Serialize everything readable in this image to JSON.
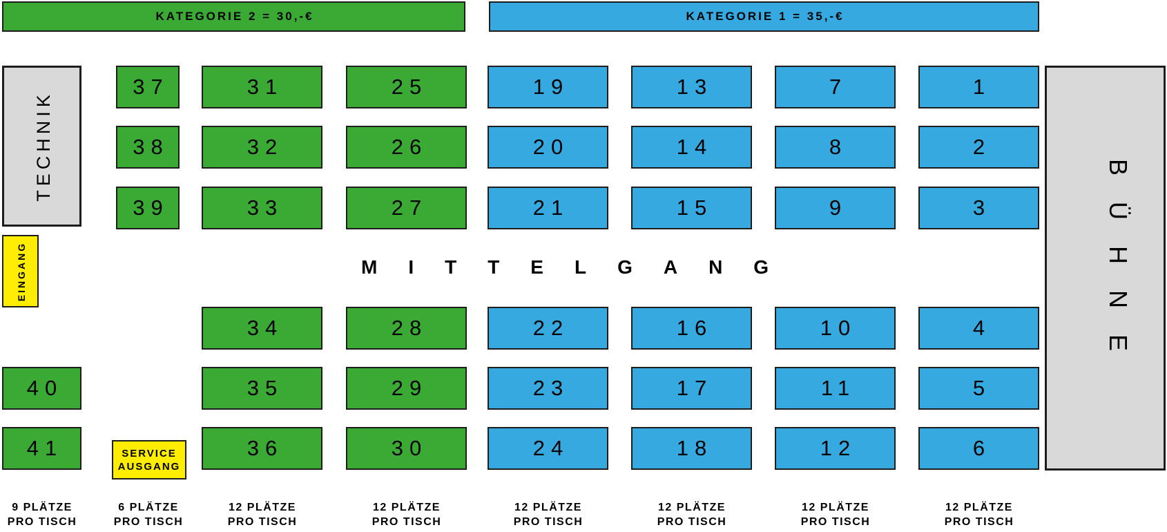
{
  "legend": {
    "kategorie2": {
      "label": "KATEGORIE 2 = 30,-€",
      "price": "30,-€",
      "color": "#3aaa35"
    },
    "kategorie1": {
      "label": "KATEGORIE 1 = 35,-€",
      "price": "35,-€",
      "color": "#36a9e1"
    }
  },
  "areas": {
    "technik": {
      "label": "TECHNIK",
      "color": "#d9d9d9"
    },
    "buehne": {
      "label": "BÜHNE",
      "color": "#d9d9d9"
    },
    "eingang": {
      "label": "EINGANG",
      "color": "#ffed00"
    },
    "service_ausgang": {
      "line1": "SERVICE",
      "line2": "AUSGANG",
      "color": "#ffed00"
    },
    "mittelgang": {
      "label": "MITTELGANG"
    }
  },
  "tables": [
    {
      "number": "37",
      "category": "2"
    },
    {
      "number": "38",
      "category": "2"
    },
    {
      "number": "39",
      "category": "2"
    },
    {
      "number": "31",
      "category": "2"
    },
    {
      "number": "32",
      "category": "2"
    },
    {
      "number": "33",
      "category": "2"
    },
    {
      "number": "25",
      "category": "2"
    },
    {
      "number": "26",
      "category": "2"
    },
    {
      "number": "27",
      "category": "2"
    },
    {
      "number": "19",
      "category": "1"
    },
    {
      "number": "20",
      "category": "1"
    },
    {
      "number": "21",
      "category": "1"
    },
    {
      "number": "13",
      "category": "1"
    },
    {
      "number": "14",
      "category": "1"
    },
    {
      "number": "15",
      "category": "1"
    },
    {
      "number": "7",
      "category": "1"
    },
    {
      "number": "8",
      "category": "1"
    },
    {
      "number": "9",
      "category": "1"
    },
    {
      "number": "1",
      "category": "1"
    },
    {
      "number": "2",
      "category": "1"
    },
    {
      "number": "3",
      "category": "1"
    },
    {
      "number": "34",
      "category": "2"
    },
    {
      "number": "35",
      "category": "2"
    },
    {
      "number": "36",
      "category": "2"
    },
    {
      "number": "28",
      "category": "2"
    },
    {
      "number": "29",
      "category": "2"
    },
    {
      "number": "30",
      "category": "2"
    },
    {
      "number": "22",
      "category": "1"
    },
    {
      "number": "23",
      "category": "1"
    },
    {
      "number": "24",
      "category": "1"
    },
    {
      "number": "16",
      "category": "1"
    },
    {
      "number": "17",
      "category": "1"
    },
    {
      "number": "18",
      "category": "1"
    },
    {
      "number": "10",
      "category": "1"
    },
    {
      "number": "11",
      "category": "1"
    },
    {
      "number": "12",
      "category": "1"
    },
    {
      "number": "4",
      "category": "1"
    },
    {
      "number": "5",
      "category": "1"
    },
    {
      "number": "6",
      "category": "1"
    },
    {
      "number": "40",
      "category": "2"
    },
    {
      "number": "41",
      "category": "2"
    }
  ],
  "capacity_labels": [
    {
      "line1": "9 PLÄTZE",
      "line2": "PRO TISCH"
    },
    {
      "line1": "6 PLÄTZE",
      "line2": "PRO TISCH"
    },
    {
      "line1": "12 PLÄTZE",
      "line2": "PRO TISCH"
    },
    {
      "line1": "12 PLÄTZE",
      "line2": "PRO TISCH"
    },
    {
      "line1": "12 PLÄTZE",
      "line2": "PRO TISCH"
    },
    {
      "line1": "12 PLÄTZE",
      "line2": "PRO TISCH"
    },
    {
      "line1": "12 PLÄTZE",
      "line2": "PRO TISCH"
    },
    {
      "line1": "12 PLÄTZE",
      "line2": "PRO TISCH"
    }
  ]
}
